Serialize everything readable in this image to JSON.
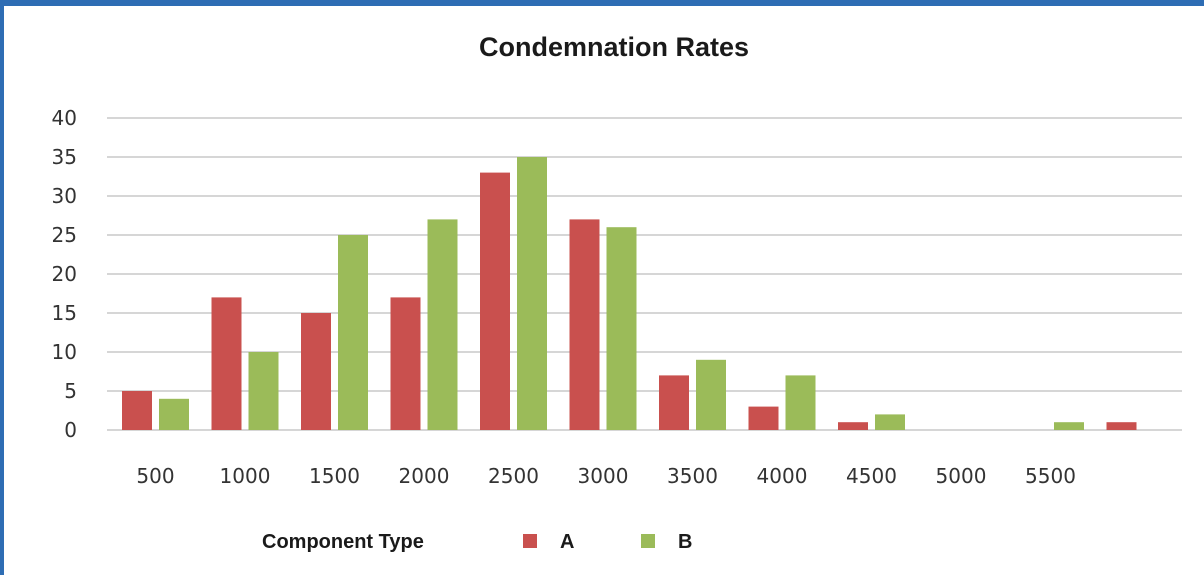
{
  "chart_data": {
    "type": "bar",
    "title": "Condemnation Rates",
    "categories": [
      "500",
      "1000",
      "1500",
      "2000",
      "2500",
      "3000",
      "3500",
      "4000",
      "4500",
      "5000",
      "5500",
      ""
    ],
    "series": [
      {
        "name": "A",
        "color": "#c9504e",
        "values": [
          5,
          17,
          15,
          17,
          33,
          27,
          7,
          3,
          1,
          0,
          0,
          1
        ]
      },
      {
        "name": "B",
        "color": "#9bbb59",
        "values": [
          4,
          10,
          25,
          27,
          35,
          26,
          9,
          7,
          2,
          0,
          1,
          0
        ]
      }
    ],
    "yticks": [
      "0",
      "5",
      "10",
      "15",
      "20",
      "25",
      "30",
      "35",
      "40"
    ],
    "ylim": [
      0,
      40
    ],
    "grid": true,
    "legend": {
      "title": "Component Type",
      "position": "bottom"
    }
  }
}
